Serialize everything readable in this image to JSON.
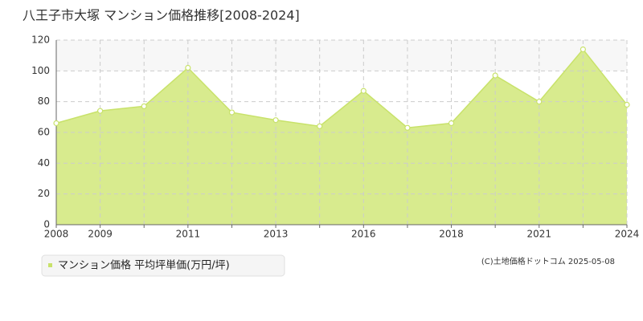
{
  "chart_data": {
    "type": "area",
    "title": "八王子市大塚 マンション価格推移[2008-2024]",
    "categories": [
      "2008",
      "2009",
      null,
      "2011",
      null,
      "2013",
      null,
      "2016",
      null,
      "2018",
      null,
      "2021",
      null,
      "2024"
    ],
    "series": [
      {
        "name": "マンション価格 平均坪単価(万円/坪)",
        "color": "#c8e26a",
        "values": [
          66,
          74,
          77,
          102,
          73,
          68,
          64,
          87,
          63,
          66,
          97,
          80,
          114,
          78
        ]
      }
    ],
    "ylim": [
      0,
      120
    ],
    "yticks": [
      0,
      20,
      40,
      60,
      80,
      100,
      120
    ],
    "grid": true,
    "source": "(C)土地価格ドットコム 2025-05-08"
  }
}
